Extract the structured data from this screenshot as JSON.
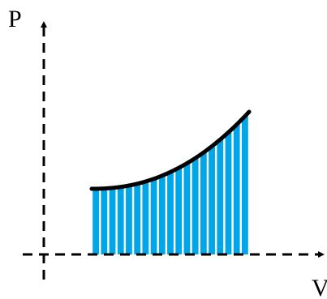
{
  "diagram": {
    "labels": {
      "y_axis": "P",
      "x_axis": "V"
    },
    "curve": {
      "shape": "increasing-convex",
      "stroke_color": "#000000",
      "fill_color": "#00a6e8"
    },
    "strips": {
      "count": 19,
      "fill_color": "#00a6e8",
      "gap_color": "#ffffff"
    },
    "axes": {
      "style": "dashed",
      "color": "#000000",
      "arrows": true
    }
  }
}
